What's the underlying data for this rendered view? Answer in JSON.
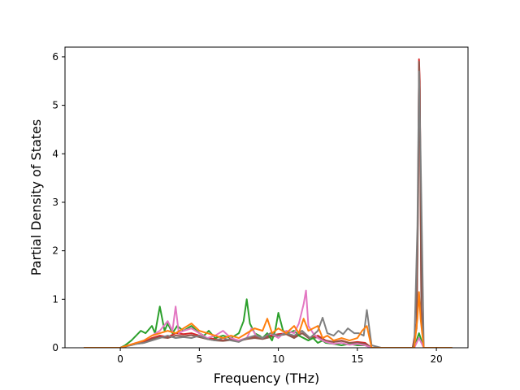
{
  "chart_data": {
    "type": "line",
    "title": "",
    "xlabel": "Frequency (THz)",
    "ylabel": "Partial Density of States",
    "xlim": [
      -3.5,
      22.0
    ],
    "ylim": [
      0,
      6.2
    ],
    "xticks": [
      0,
      5,
      10,
      15,
      20
    ],
    "yticks": [
      0,
      1,
      2,
      3,
      4,
      5,
      6
    ],
    "grid": false,
    "legend": "none",
    "series": [
      {
        "color": "#d62728",
        "x": [
          -2.3,
          0.0,
          0.5,
          1.0,
          1.5,
          2.0,
          2.5,
          3.0,
          3.5,
          4.0,
          4.5,
          5.0,
          5.5,
          6.0,
          6.5,
          7.0,
          7.5,
          8.0,
          8.5,
          9.0,
          9.5,
          10.0,
          10.5,
          11.0,
          11.5,
          12.0,
          12.5,
          13.0,
          13.5,
          14.0,
          14.5,
          15.0,
          15.5,
          15.9,
          16.5,
          18.5,
          18.75,
          18.85,
          18.9,
          18.95,
          19.05,
          19.2,
          19.5,
          21.0
        ],
        "y": [
          0,
          0,
          0.05,
          0.1,
          0.12,
          0.2,
          0.25,
          0.22,
          0.3,
          0.28,
          0.3,
          0.25,
          0.2,
          0.18,
          0.15,
          0.18,
          0.15,
          0.2,
          0.22,
          0.2,
          0.25,
          0.28,
          0.3,
          0.22,
          0.35,
          0.2,
          0.25,
          0.15,
          0.12,
          0.15,
          0.1,
          0.12,
          0.1,
          0,
          0,
          0,
          0.5,
          3.5,
          5.95,
          5.5,
          0.8,
          0,
          0,
          0
        ]
      },
      {
        "color": "#8c564b",
        "x": [
          -2.3,
          0.0,
          0.5,
          1.0,
          1.5,
          2.0,
          2.5,
          3.0,
          3.5,
          4.0,
          4.5,
          5.0,
          5.5,
          6.0,
          6.5,
          7.0,
          7.5,
          8.0,
          8.5,
          9.0,
          9.5,
          10.0,
          10.5,
          11.0,
          11.5,
          12.0,
          12.5,
          13.0,
          13.5,
          14.0,
          14.5,
          15.0,
          15.5,
          15.9,
          16.5,
          18.5,
          18.75,
          18.85,
          18.9,
          18.95,
          19.05,
          19.2,
          19.5,
          21.0
        ],
        "y": [
          0,
          0,
          0.04,
          0.08,
          0.1,
          0.18,
          0.22,
          0.2,
          0.25,
          0.24,
          0.26,
          0.22,
          0.18,
          0.15,
          0.14,
          0.16,
          0.14,
          0.18,
          0.2,
          0.18,
          0.22,
          0.25,
          0.28,
          0.2,
          0.3,
          0.18,
          0.22,
          0.14,
          0.12,
          0.14,
          0.1,
          0.1,
          0.08,
          0,
          0,
          0,
          0.4,
          3.2,
          5.9,
          5.3,
          0.7,
          0,
          0,
          0
        ]
      },
      {
        "color": "#2ca02c",
        "x": [
          -2.3,
          0.0,
          0.3,
          0.7,
          1.0,
          1.3,
          1.6,
          2.0,
          2.2,
          2.5,
          2.8,
          3.0,
          3.3,
          3.6,
          4.0,
          4.5,
          5.0,
          5.3,
          5.6,
          6.0,
          6.5,
          7.0,
          7.5,
          7.8,
          8.0,
          8.2,
          8.5,
          8.8,
          9.0,
          9.3,
          9.6,
          9.8,
          10.0,
          10.3,
          10.6,
          11.0,
          11.3,
          11.6,
          11.9,
          12.2,
          12.5,
          12.8,
          13.0,
          13.5,
          14.0,
          14.5,
          15.0,
          15.5,
          15.9,
          16.5,
          18.6,
          18.9,
          19.2,
          21.0
        ],
        "y": [
          0,
          0,
          0.05,
          0.15,
          0.25,
          0.35,
          0.3,
          0.45,
          0.3,
          0.85,
          0.35,
          0.5,
          0.3,
          0.45,
          0.35,
          0.45,
          0.3,
          0.25,
          0.35,
          0.2,
          0.25,
          0.2,
          0.3,
          0.55,
          1.0,
          0.5,
          0.3,
          0.25,
          0.2,
          0.3,
          0.15,
          0.35,
          0.72,
          0.35,
          0.3,
          0.35,
          0.25,
          0.2,
          0.15,
          0.2,
          0.1,
          0.15,
          0.1,
          0.08,
          0.05,
          0.08,
          0.05,
          0.05,
          0,
          0,
          0,
          0.3,
          0,
          0
        ]
      },
      {
        "color": "#e377c2",
        "x": [
          -2.3,
          0.0,
          0.5,
          1.0,
          1.5,
          2.0,
          2.5,
          3.0,
          3.3,
          3.5,
          3.7,
          4.0,
          4.5,
          5.0,
          5.5,
          6.0,
          6.5,
          7.0,
          7.5,
          8.0,
          8.3,
          8.6,
          9.0,
          9.5,
          10.0,
          10.5,
          11.0,
          11.3,
          11.6,
          11.75,
          11.9,
          12.2,
          12.5,
          13.0,
          13.5,
          14.0,
          14.5,
          15.0,
          15.5,
          15.9,
          16.5,
          18.6,
          18.9,
          19.2,
          21.0
        ],
        "y": [
          0,
          0,
          0.05,
          0.1,
          0.15,
          0.25,
          0.35,
          0.55,
          0.35,
          0.85,
          0.3,
          0.35,
          0.4,
          0.3,
          0.2,
          0.25,
          0.35,
          0.2,
          0.15,
          0.2,
          0.4,
          0.25,
          0.2,
          0.3,
          0.2,
          0.35,
          0.3,
          0.5,
          0.9,
          1.18,
          0.45,
          0.3,
          0.2,
          0.12,
          0.08,
          0.1,
          0.06,
          0.08,
          0.05,
          0,
          0,
          0,
          0.2,
          0,
          0
        ]
      },
      {
        "color": "#7f7f7f",
        "x": [
          -2.3,
          0.0,
          0.5,
          1.0,
          1.5,
          2.0,
          2.5,
          3.0,
          3.5,
          4.0,
          4.5,
          5.0,
          5.5,
          6.0,
          6.5,
          7.0,
          7.5,
          8.0,
          8.5,
          9.0,
          9.5,
          10.0,
          10.5,
          11.0,
          11.5,
          12.0,
          12.5,
          12.8,
          13.1,
          13.5,
          13.8,
          14.1,
          14.4,
          14.8,
          15.1,
          15.4,
          15.6,
          15.9,
          16.5,
          18.6,
          18.8,
          18.9,
          19.0,
          19.2,
          21.0
        ],
        "y": [
          0,
          0,
          0.04,
          0.08,
          0.1,
          0.15,
          0.2,
          0.25,
          0.2,
          0.22,
          0.2,
          0.25,
          0.18,
          0.15,
          0.2,
          0.15,
          0.12,
          0.2,
          0.25,
          0.2,
          0.3,
          0.25,
          0.3,
          0.25,
          0.35,
          0.2,
          0.35,
          0.62,
          0.3,
          0.25,
          0.35,
          0.28,
          0.4,
          0.3,
          0.3,
          0.25,
          0.78,
          0.05,
          0,
          0,
          2.5,
          5.7,
          4.0,
          0,
          0
        ]
      },
      {
        "color": "#ff7f0e",
        "x": [
          -2.3,
          0.0,
          0.5,
          1.0,
          1.5,
          2.0,
          2.5,
          3.0,
          3.5,
          4.0,
          4.5,
          5.0,
          5.5,
          6.0,
          6.5,
          7.0,
          7.5,
          8.0,
          8.5,
          9.0,
          9.3,
          9.6,
          10.0,
          10.5,
          11.0,
          11.3,
          11.6,
          11.9,
          12.2,
          12.5,
          12.8,
          13.1,
          13.5,
          14.0,
          14.5,
          15.0,
          15.3,
          15.6,
          15.9,
          16.5,
          18.6,
          18.8,
          18.9,
          19.0,
          19.2,
          21.0
        ],
        "y": [
          0,
          0,
          0.05,
          0.1,
          0.15,
          0.25,
          0.3,
          0.35,
          0.3,
          0.4,
          0.5,
          0.35,
          0.3,
          0.25,
          0.2,
          0.25,
          0.2,
          0.3,
          0.4,
          0.35,
          0.6,
          0.3,
          0.4,
          0.3,
          0.45,
          0.3,
          0.6,
          0.35,
          0.4,
          0.45,
          0.2,
          0.25,
          0.15,
          0.2,
          0.15,
          0.2,
          0.35,
          0.45,
          0,
          0,
          0,
          0.6,
          1.15,
          0.6,
          0,
          0
        ]
      }
    ]
  }
}
